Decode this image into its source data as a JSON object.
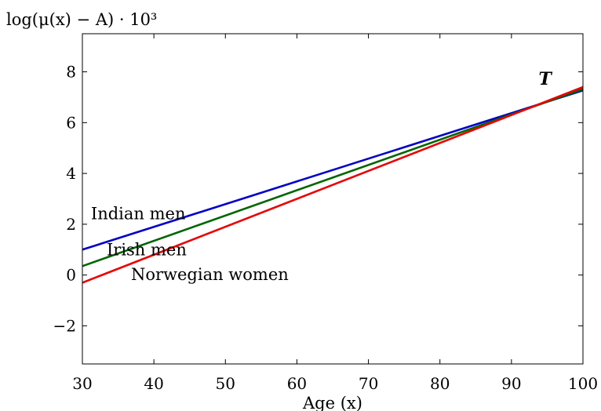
{
  "chart_data": {
    "type": "line",
    "title": "log(μ(x) − A) · 10³",
    "xlabel": "Age (x)",
    "ylabel": "",
    "xlim": [
      30,
      100
    ],
    "ylim": [
      -3.5,
      9.5
    ],
    "xticks": [
      30,
      40,
      50,
      60,
      70,
      80,
      90,
      100
    ],
    "yticks": [
      -2,
      0,
      2,
      4,
      6,
      8
    ],
    "ytick_labels": [
      "−2",
      "0",
      "2",
      "4",
      "6",
      "8"
    ],
    "grid": false,
    "series": [
      {
        "name": "Indian men",
        "color": "#0000cc",
        "x": [
          30,
          100
        ],
        "y": [
          1.0,
          7.27
        ]
      },
      {
        "name": "Irish men",
        "color": "#006600",
        "x": [
          30,
          100
        ],
        "y": [
          0.35,
          7.32
        ]
      },
      {
        "name": "Norwegian women",
        "color": "#ee0000",
        "x": [
          30,
          100
        ],
        "y": [
          -0.3,
          7.4
        ]
      }
    ],
    "annotations": [
      {
        "text": "Indian men",
        "x": 31.2,
        "y": 2.2
      },
      {
        "text": "Irish men",
        "x": 33.4,
        "y": 0.78
      },
      {
        "text": "Norwegian women",
        "x": 36.8,
        "y": -0.2
      },
      {
        "text": "T",
        "x": 93.8,
        "y": 7.5
      }
    ]
  }
}
